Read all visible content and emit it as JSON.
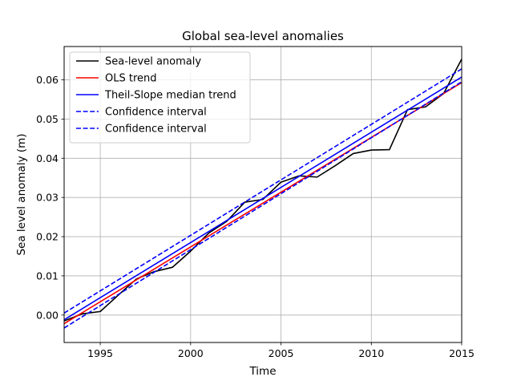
{
  "chart_data": {
    "type": "line",
    "title": "Global sea-level anomalies",
    "xlabel": "Time",
    "ylabel": "Sea level anomaly (m)",
    "xlim": [
      1993,
      2015
    ],
    "ylim": [
      -0.007,
      0.0685
    ],
    "grid": true,
    "legend_position": "top-left",
    "x_ticks": [
      1995,
      2000,
      2005,
      2010,
      2015
    ],
    "y_ticks": [
      0.0,
      0.01,
      0.02,
      0.03,
      0.04,
      0.05,
      0.06
    ],
    "y_tick_labels": [
      "0.00",
      "0.01",
      "0.02",
      "0.03",
      "0.04",
      "0.05",
      "0.06"
    ],
    "series": [
      {
        "name": "Sea-level anomaly",
        "color": "#000000",
        "dash": "solid",
        "x": [
          1993,
          1994,
          1995,
          1996,
          1997,
          1998,
          1999,
          2000,
          2001,
          2002,
          2003,
          2004,
          2005,
          2006,
          2007,
          2008,
          2009,
          2010,
          2011,
          2012,
          2013,
          2014,
          2015
        ],
        "values": [
          -0.0015,
          0.0003,
          0.0009,
          0.0051,
          0.0092,
          0.0111,
          0.0122,
          0.0163,
          0.0209,
          0.0239,
          0.0288,
          0.0295,
          0.0339,
          0.0355,
          0.0352,
          0.0381,
          0.0412,
          0.0421,
          0.0422,
          0.0524,
          0.0531,
          0.0565,
          0.0653
        ]
      },
      {
        "name": "OLS trend",
        "color": "#ff0000",
        "dash": "solid",
        "x": [
          1993,
          2015
        ],
        "values": [
          -0.0022,
          0.0593
        ]
      },
      {
        "name": "Theil-Slope median trend",
        "color": "#0000ff",
        "dash": "solid",
        "x": [
          1993,
          2015
        ],
        "values": [
          -0.0012,
          0.0607
        ]
      },
      {
        "name": "Confidence interval",
        "color": "#0000ff",
        "dash": "dashed",
        "x": [
          1993,
          2015
        ],
        "values": [
          0.0005,
          0.0628
        ]
      },
      {
        "name": "Confidence interval",
        "color": "#0000ff",
        "dash": "dashed",
        "x": [
          1993,
          2015
        ],
        "values": [
          -0.0033,
          0.0595
        ]
      }
    ]
  }
}
